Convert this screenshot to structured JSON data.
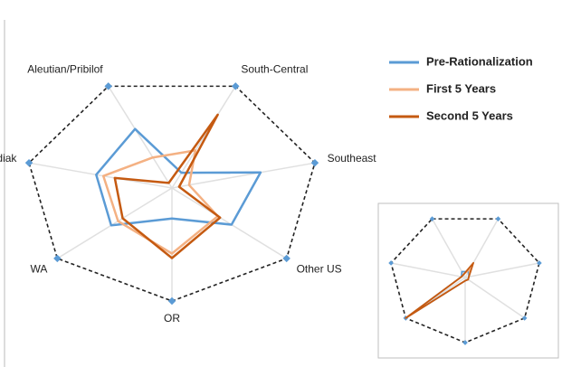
{
  "chart_data": [
    {
      "type": "radar",
      "categories": [
        "Aleutian/Pribilof",
        "South-Central",
        "Southeast",
        "Other US",
        "OR",
        "WA",
        "Kodiak"
      ],
      "rlim": [
        0,
        1
      ],
      "series": [
        {
          "name": "Pre-Rationalization",
          "color": "#5b9bd5",
          "values": [
            0.58,
            0.15,
            0.62,
            0.52,
            0.27,
            0.53,
            0.53
          ]
        },
        {
          "name": "First 5 Years",
          "color": "#f4b183",
          "values": [
            0.3,
            0.37,
            0.12,
            0.4,
            0.58,
            0.47,
            0.48
          ]
        },
        {
          "name": "Second 5 Years",
          "color": "#c55a11",
          "values": [
            0.05,
            0.72,
            0.05,
            0.42,
            0.62,
            0.43,
            0.4
          ]
        }
      ]
    },
    {
      "type": "radar",
      "categories": [
        null,
        null,
        null,
        null,
        null,
        null,
        null
      ],
      "rlim": [
        0,
        1
      ],
      "series": [
        {
          "color": "#5b9bd5",
          "values": [
            0.1,
            0.1,
            0.05,
            0.05,
            0.05,
            1.0,
            0.05
          ]
        },
        {
          "color": "#f4b183",
          "values": [
            0.05,
            0.15,
            0.05,
            0.05,
            0.05,
            1.0,
            0.05
          ]
        },
        {
          "color": "#c55a11",
          "values": [
            0.05,
            0.25,
            0.05,
            0.05,
            0.05,
            1.0,
            0.05
          ]
        }
      ]
    }
  ]
}
